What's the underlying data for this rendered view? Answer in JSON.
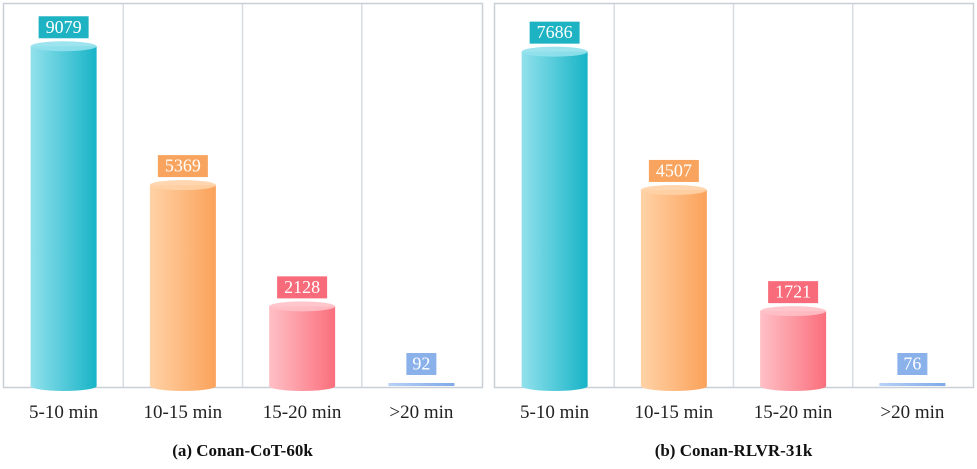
{
  "colors": {
    "panel_border": "#c8cfd6",
    "grid": "#d6dde3",
    "tick_text": "#222222",
    "series": [
      {
        "light": "#92e1ec",
        "dark": "#17b4c7",
        "label_bg": "#1eb3c3"
      },
      {
        "light": "#ffd2a6",
        "dark": "#fba25b",
        "label_bg": "#f8a45e"
      },
      {
        "light": "#ffc0c6",
        "dark": "#fa6f7c",
        "label_bg": "#f76b7a"
      },
      {
        "light": "#b8d2f6",
        "dark": "#7fa9e9",
        "label_bg": "#8bb1ea"
      }
    ]
  },
  "chart_data": [
    {
      "type": "bar",
      "title": "(a) Conan-CoT-60k",
      "categories": [
        "5-10 min",
        "10-15 min",
        "15-20 min",
        ">20 min"
      ],
      "values": [
        9079,
        5369,
        2128,
        92
      ],
      "ylim": [
        0,
        9300
      ],
      "grid": true
    },
    {
      "type": "bar",
      "title": "(b) Conan-RLVR-31k",
      "categories": [
        "5-10 min",
        "10-15 min",
        "15-20 min",
        ">20 min"
      ],
      "values": [
        7686,
        4507,
        1721,
        76
      ],
      "ylim": [
        0,
        8000
      ],
      "grid": true
    }
  ]
}
